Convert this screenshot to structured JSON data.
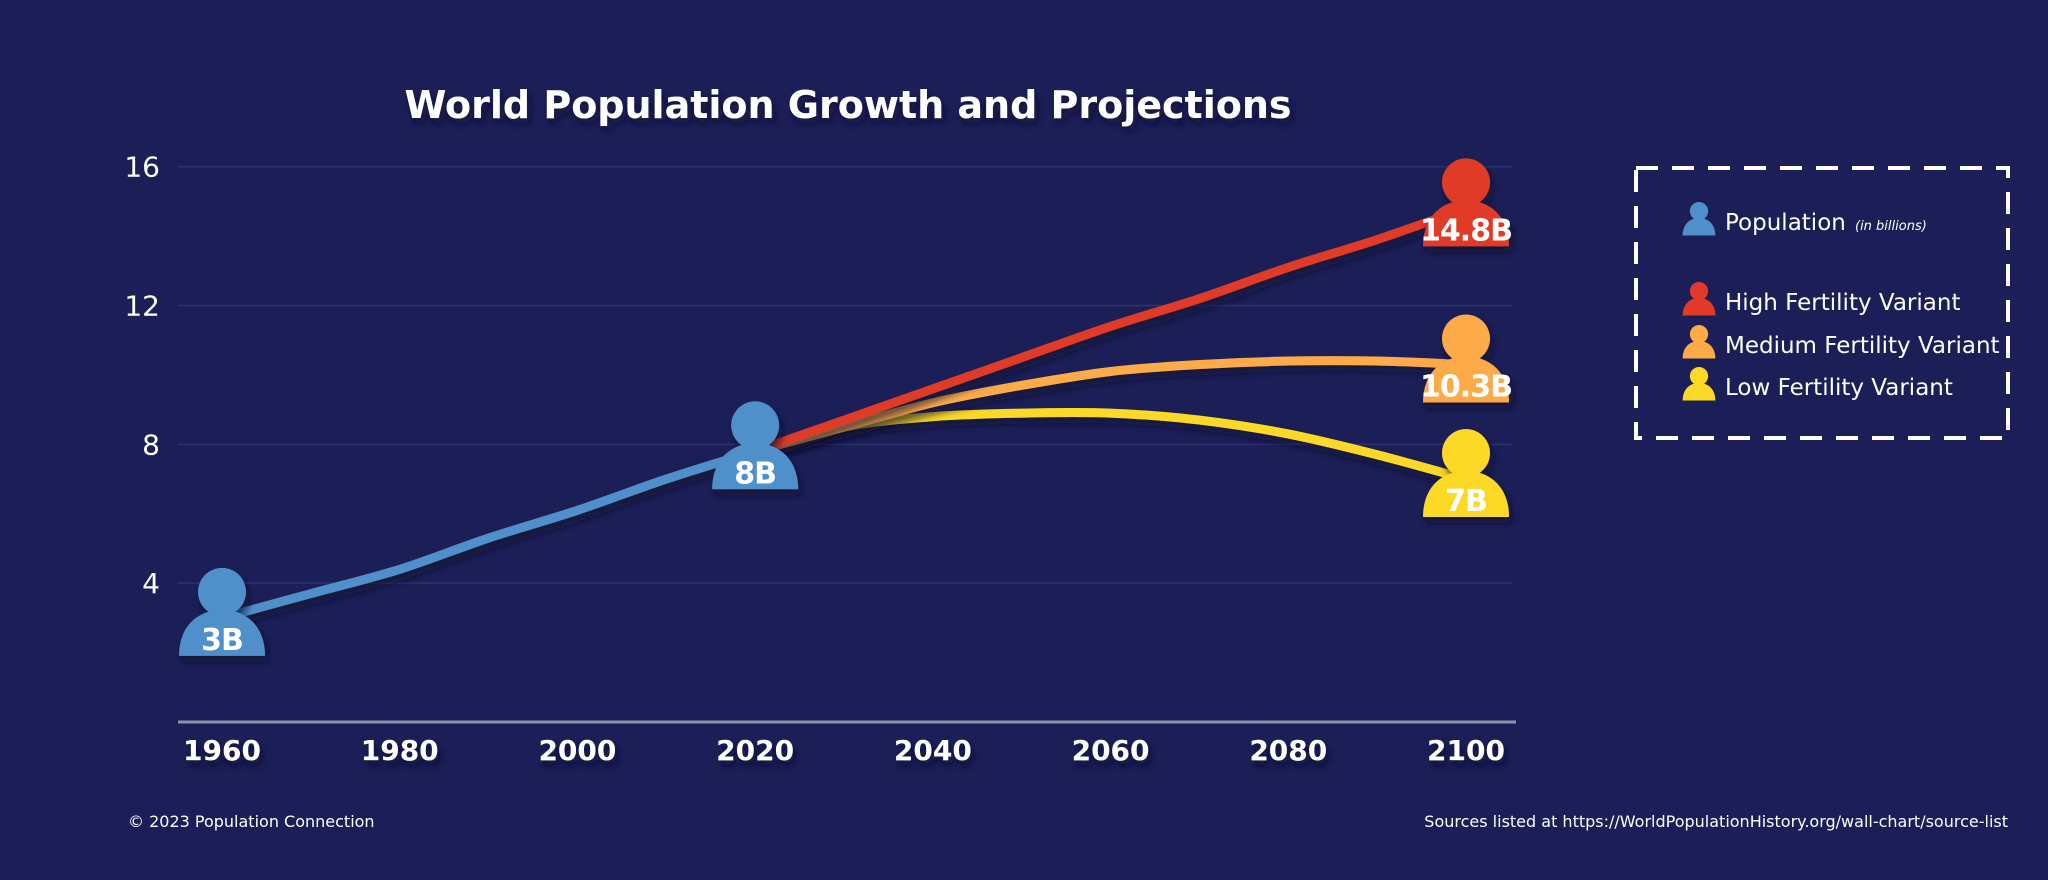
{
  "chart_data": {
    "type": "line",
    "title": "World Population Growth and Projections",
    "xlabel": "",
    "ylabel": "",
    "x_ticks": [
      1960,
      1980,
      2000,
      2020,
      2040,
      2060,
      2080,
      2100
    ],
    "y_ticks": [
      4,
      8,
      12,
      16
    ],
    "xlim": [
      1960,
      2100
    ],
    "ylim": [
      0,
      17
    ],
    "grid": true,
    "legend_position": "right",
    "series": [
      {
        "name": "Population",
        "name_note": "(in billions)",
        "color": "#4f8fca",
        "x": [
          1960,
          1970,
          1980,
          1990,
          2000,
          2010,
          2020
        ],
        "y": [
          3.0,
          3.7,
          4.4,
          5.3,
          6.1,
          7.0,
          7.8
        ]
      },
      {
        "name": "High Fertility Variant",
        "color": "#e03a28",
        "x": [
          2020,
          2030,
          2040,
          2050,
          2060,
          2070,
          2080,
          2090,
          2100
        ],
        "y": [
          7.8,
          8.7,
          9.6,
          10.5,
          11.4,
          12.2,
          13.1,
          13.9,
          14.8
        ]
      },
      {
        "name": "Medium Fertility Variant",
        "color": "#fdaa48",
        "x": [
          2020,
          2030,
          2040,
          2050,
          2060,
          2070,
          2080,
          2090,
          2100
        ],
        "y": [
          7.8,
          8.5,
          9.2,
          9.7,
          10.1,
          10.3,
          10.4,
          10.4,
          10.3
        ]
      },
      {
        "name": "Low Fertility Variant",
        "color": "#fcd927",
        "x": [
          2020,
          2030,
          2040,
          2050,
          2060,
          2070,
          2080,
          2090,
          2100
        ],
        "y": [
          7.8,
          8.5,
          8.8,
          8.9,
          8.9,
          8.7,
          8.3,
          7.7,
          7.0
        ]
      }
    ],
    "markers": [
      {
        "label": "3B",
        "x": 1960,
        "y": 3.0,
        "color": "#4f8fca"
      },
      {
        "label": "8B",
        "x": 2020,
        "y": 7.8,
        "color": "#4f8fca"
      },
      {
        "label": "14.8B",
        "x": 2100,
        "y": 14.8,
        "color": "#e03a28"
      },
      {
        "label": "10.3B",
        "x": 2100,
        "y": 10.3,
        "color": "#fdaa48"
      },
      {
        "label": "7B",
        "x": 2100,
        "y": 7.0,
        "color": "#fcd927"
      }
    ]
  },
  "footer": {
    "copyright": "© 2023 Population Connection",
    "sources": "Sources listed at https://WorldPopulationHistory.org/wall-chart/source-list"
  },
  "colors": {
    "background": "#1c1f57",
    "gridline": "#2e3270",
    "axis": "#8f91a8"
  }
}
